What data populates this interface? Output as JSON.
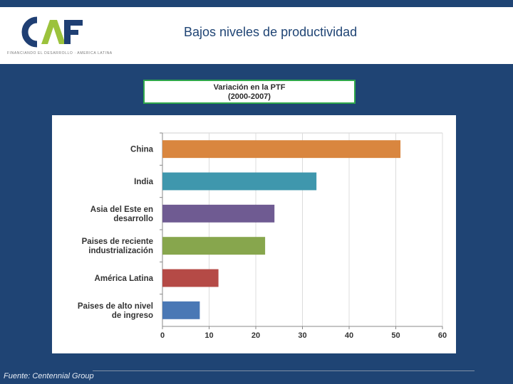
{
  "header": {
    "logo_text": "CAF",
    "logo_tagline": "FINANCIANDO EL DESARROLLO · AMERICA LATINA",
    "title": "Bajos niveles de productividad"
  },
  "chart_title": {
    "line1": "Variación en la PTF",
    "line2": "(2000-2007)"
  },
  "colors": {
    "background": "#1f4474",
    "accent_green": "#2fa84a"
  },
  "chart_data": {
    "type": "bar",
    "orientation": "horizontal",
    "title": "Variación en la PTF (2000-2007)",
    "categories": [
      [
        "China"
      ],
      [
        "India"
      ],
      [
        "Asia del Este en",
        "desarrollo"
      ],
      [
        "Paises de reciente",
        "industrialización"
      ],
      [
        "América Latina"
      ],
      [
        "Paises de alto nivel",
        "de ingreso"
      ]
    ],
    "values": [
      51,
      33,
      24,
      22,
      12,
      8
    ],
    "colors": [
      "#d9863f",
      "#3f97ad",
      "#6f5b92",
      "#87a64d",
      "#b54a46",
      "#4a78b5"
    ],
    "xlim": [
      0,
      60
    ],
    "xticks": [
      "0",
      "10",
      "20",
      "30",
      "40",
      "50",
      "60"
    ],
    "grid": true,
    "xlabel": "",
    "ylabel": ""
  },
  "footer": {
    "source": "Fuente: Centennial Group"
  }
}
